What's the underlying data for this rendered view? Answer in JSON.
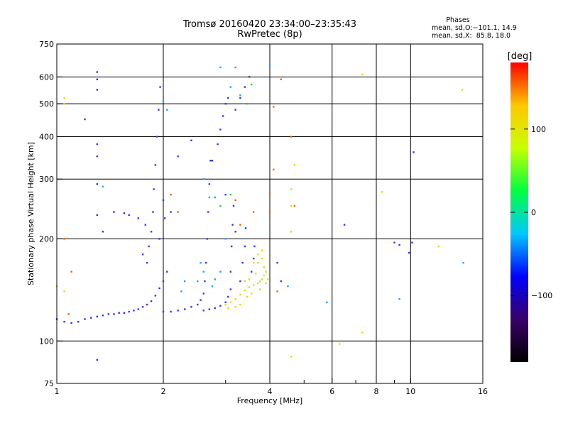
{
  "header": {
    "title_line1": "Tromsø 20160420 23:34:00–23:35:43",
    "title_line2": "RwPretec (8p)",
    "stats_title": "Phases",
    "stats_o": "mean, sd,O:−101.1, 14.9",
    "stats_x": "mean, sd,X:  85.8, 18.0"
  },
  "chart_data": {
    "type": "scatter",
    "xlabel": "Frequency [MHz]",
    "ylabel": "Stationary phase Virtual Height [km]",
    "x_scale": "log",
    "y_scale": "log",
    "xlim": [
      1,
      16
    ],
    "ylim": [
      75,
      750
    ],
    "x_ticks": [
      1,
      2,
      4,
      6,
      8,
      10,
      16
    ],
    "x_minor_ticks": [
      3,
      5,
      7,
      9
    ],
    "y_ticks": [
      75,
      100,
      200,
      300,
      400,
      500,
      600,
      750
    ],
    "x_gridlines": [
      2,
      4,
      6,
      8,
      10
    ],
    "y_gridlines": [
      100,
      200,
      300,
      400,
      500,
      600
    ],
    "grid": true,
    "colorbar": {
      "label": "[deg]",
      "ticks": [
        100,
        0,
        -100
      ],
      "range": [
        -180,
        180
      ],
      "colors": [
        "#000000",
        "#3a006a",
        "#0000ff",
        "#00c8ff",
        "#00ff40",
        "#c8ff00",
        "#ffc800",
        "#ff0000"
      ]
    },
    "series": [
      {
        "mode": "O",
        "color": "#3333ee",
        "points": [
          [
            1.0,
            116
          ],
          [
            1.05,
            114
          ],
          [
            1.1,
            113
          ],
          [
            1.15,
            114
          ],
          [
            1.2,
            116
          ],
          [
            1.25,
            117
          ],
          [
            1.3,
            118
          ],
          [
            1.35,
            119
          ],
          [
            1.4,
            120
          ],
          [
            1.45,
            120
          ],
          [
            1.5,
            121
          ],
          [
            1.55,
            121
          ],
          [
            1.6,
            122
          ],
          [
            1.65,
            123
          ],
          [
            1.7,
            124
          ],
          [
            1.75,
            126
          ],
          [
            1.8,
            128
          ],
          [
            1.85,
            131
          ],
          [
            1.9,
            136
          ],
          [
            1.95,
            143
          ],
          [
            2.0,
            150
          ],
          [
            2.05,
            160
          ],
          [
            1.8,
            170
          ],
          [
            1.82,
            190
          ],
          [
            1.85,
            210
          ],
          [
            1.87,
            240
          ],
          [
            1.88,
            280
          ],
          [
            1.9,
            330
          ],
          [
            1.92,
            400
          ],
          [
            1.94,
            480
          ],
          [
            1.96,
            560
          ],
          [
            1.75,
            180
          ],
          [
            1.78,
            220
          ],
          [
            1.7,
            230
          ],
          [
            1.6,
            235
          ],
          [
            1.55,
            238
          ],
          [
            1.95,
            200
          ],
          [
            2.0,
            260
          ],
          [
            2.02,
            230
          ],
          [
            2.0,
            122
          ],
          [
            2.1,
            122
          ],
          [
            2.2,
            123
          ],
          [
            2.3,
            124
          ],
          [
            2.4,
            126
          ],
          [
            2.5,
            128
          ],
          [
            2.55,
            132
          ],
          [
            2.6,
            138
          ],
          [
            2.62,
            150
          ],
          [
            2.64,
            170
          ],
          [
            2.66,
            200
          ],
          [
            2.68,
            240
          ],
          [
            2.7,
            290
          ],
          [
            2.72,
            340
          ],
          [
            2.6,
            123
          ],
          [
            2.7,
            124
          ],
          [
            2.8,
            125
          ],
          [
            2.9,
            127
          ],
          [
            3.0,
            130
          ],
          [
            3.05,
            135
          ],
          [
            3.1,
            142
          ],
          [
            3.1,
            160
          ],
          [
            3.12,
            190
          ],
          [
            3.14,
            220
          ],
          [
            3.16,
            250
          ],
          [
            3.0,
            270
          ],
          [
            3.2,
            210
          ],
          [
            3.3,
            150
          ],
          [
            3.35,
            170
          ],
          [
            3.4,
            190
          ],
          [
            3.42,
            215
          ],
          [
            3.55,
            160
          ],
          [
            3.6,
            175
          ],
          [
            3.62,
            190
          ],
          [
            2.9,
            420
          ],
          [
            2.95,
            460
          ],
          [
            3.0,
            500
          ],
          [
            3.05,
            520
          ],
          [
            2.85,
            380
          ],
          [
            2.75,
            340
          ],
          [
            3.2,
            480
          ],
          [
            3.3,
            520
          ],
          [
            3.4,
            560
          ],
          [
            3.5,
            600
          ],
          [
            1.3,
            620
          ],
          [
            1.3,
            590
          ],
          [
            1.3,
            550
          ],
          [
            1.3,
            380
          ],
          [
            1.3,
            350
          ],
          [
            1.3,
            290
          ],
          [
            1.3,
            235
          ],
          [
            1.3,
            88
          ],
          [
            1.2,
            450
          ],
          [
            1.35,
            210
          ],
          [
            1.45,
            240
          ],
          [
            2.1,
            240
          ],
          [
            2.2,
            350
          ],
          [
            2.4,
            390
          ],
          [
            9.0,
            195
          ],
          [
            9.3,
            192
          ],
          [
            10.1,
            195
          ],
          [
            9.9,
            182
          ],
          [
            10.2,
            360
          ],
          [
            6.5,
            220
          ],
          [
            4.3,
            150
          ],
          [
            4.2,
            170
          ]
        ]
      },
      {
        "mode": "X",
        "color": "#dddd00",
        "points": [
          [
            3.0,
            128
          ],
          [
            3.1,
            130
          ],
          [
            3.2,
            133
          ],
          [
            3.3,
            137
          ],
          [
            3.4,
            141
          ],
          [
            3.5,
            144
          ],
          [
            3.6,
            146
          ],
          [
            3.7,
            148
          ],
          [
            3.75,
            150
          ],
          [
            3.8,
            152
          ],
          [
            3.85,
            156
          ],
          [
            3.9,
            160
          ],
          [
            3.6,
            170
          ],
          [
            3.7,
            180
          ],
          [
            3.8,
            185
          ],
          [
            3.5,
            152
          ],
          [
            3.4,
            150
          ],
          [
            3.65,
            158
          ],
          [
            3.55,
            138
          ],
          [
            3.75,
            142
          ],
          [
            3.3,
            128
          ],
          [
            3.45,
            135
          ],
          [
            3.9,
            148
          ],
          [
            3.95,
            152
          ],
          [
            3.85,
            165
          ],
          [
            3.2,
            126
          ],
          [
            3.05,
            125
          ],
          [
            3.7,
            170
          ],
          [
            3.8,
            175
          ],
          [
            7.3,
            610
          ],
          [
            8.3,
            275
          ],
          [
            12.0,
            190
          ],
          [
            14.0,
            550
          ],
          [
            1.05,
            500
          ],
          [
            1.05,
            520
          ],
          [
            1.05,
            140
          ],
          [
            1.0,
            145
          ],
          [
            4.6,
            90
          ],
          [
            6.3,
            98
          ],
          [
            7.3,
            106
          ],
          [
            4.7,
            330
          ],
          [
            4.6,
            280
          ],
          [
            4.6,
            250
          ],
          [
            4.6,
            210
          ]
        ]
      },
      {
        "mode": "mixed",
        "color": "#20a0ff",
        "points": [
          [
            2.5,
            150
          ],
          [
            2.55,
            170
          ],
          [
            2.6,
            160
          ],
          [
            2.75,
            145
          ],
          [
            2.8,
            152
          ],
          [
            2.9,
            160
          ],
          [
            3.0,
            200
          ],
          [
            3.1,
            560
          ],
          [
            2.6,
            300
          ],
          [
            2.7,
            265
          ],
          [
            2.8,
            265
          ],
          [
            2.3,
            150
          ],
          [
            2.25,
            140
          ],
          [
            3.3,
            530
          ],
          [
            4.0,
            650
          ],
          [
            4.5,
            145
          ],
          [
            5.8,
            130
          ],
          [
            9.3,
            133
          ],
          [
            14.1,
            170
          ],
          [
            1.35,
            285
          ],
          [
            2.0,
            510
          ],
          [
            2.05,
            480
          ]
        ]
      },
      {
        "mode": "mixed",
        "color": "#ee6600",
        "points": [
          [
            1.05,
            200
          ],
          [
            1.1,
            160
          ],
          [
            1.08,
            120
          ],
          [
            2.1,
            270
          ],
          [
            2.2,
            240
          ],
          [
            3.2,
            260
          ],
          [
            3.3,
            220
          ],
          [
            3.6,
            240
          ],
          [
            4.0,
            270
          ],
          [
            4.1,
            320
          ],
          [
            4.3,
            590
          ],
          [
            4.1,
            490
          ],
          [
            4.0,
            240
          ],
          [
            4.6,
            400
          ],
          [
            4.7,
            250
          ],
          [
            4.2,
            140
          ]
        ]
      },
      {
        "mode": "mixed",
        "color": "#22cc33",
        "points": [
          [
            2.9,
            640
          ],
          [
            3.2,
            640
          ],
          [
            3.45,
            500
          ],
          [
            3.55,
            570
          ],
          [
            3.1,
            270
          ],
          [
            2.9,
            250
          ]
        ]
      }
    ]
  }
}
